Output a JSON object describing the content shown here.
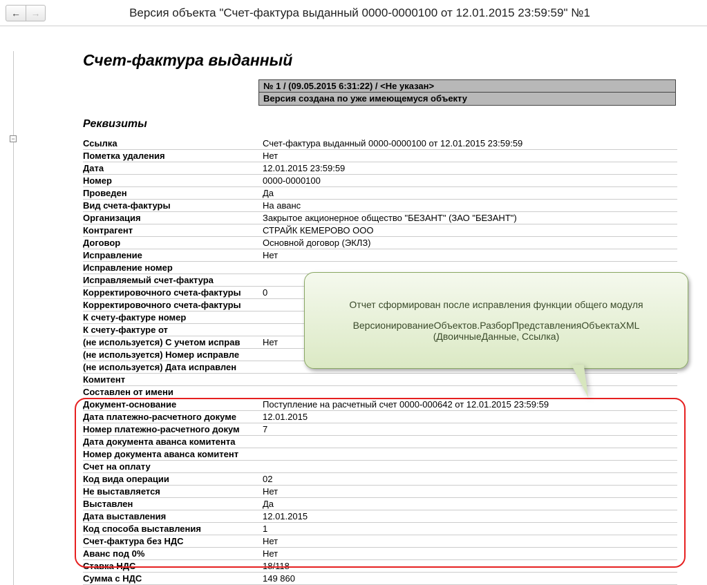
{
  "toolbar": {
    "title": "Версия объекта \"Счет-фактура выданный 0000-0000100 от 12.01.2015 23:59:59\" №1"
  },
  "doc": {
    "heading": "Счет-фактура выданный",
    "meta": {
      "row1": "№ 1 / (09.05.2015 6:31:22) / <Не указан>",
      "row2": "Версия создана по уже имеющемуся объекту"
    },
    "props_heading": "Реквизиты",
    "rows": [
      {
        "label": "Ссылка",
        "value": "Счет-фактура выданный 0000-0000100 от 12.01.2015 23:59:59"
      },
      {
        "label": "Пометка удаления",
        "value": "Нет"
      },
      {
        "label": "Дата",
        "value": "12.01.2015 23:59:59"
      },
      {
        "label": "Номер",
        "value": "0000-0000100"
      },
      {
        "label": "Проведен",
        "value": "Да"
      },
      {
        "label": "Вид счета-фактуры",
        "value": "На аванс"
      },
      {
        "label": "Организация",
        "value": "Закрытое акционерное общество \"БЕЗАНТ\" (ЗАО \"БЕЗАНТ\")"
      },
      {
        "label": "Контрагент",
        "value": "СТРАЙК КЕМЕРОВО ООО"
      },
      {
        "label": "Договор",
        "value": "Основной договор (ЭКЛЗ)"
      },
      {
        "label": "Исправление",
        "value": "Нет"
      },
      {
        "label": "Исправление номер",
        "value": ""
      },
      {
        "label": "Исправляемый счет-фактура",
        "value": ""
      },
      {
        "label": "Корректировочного счета-фактуры",
        "value": "0"
      },
      {
        "label": "Корректировочного счета-фактуры",
        "value": ""
      },
      {
        "label": "К счету-фактуре номер",
        "value": ""
      },
      {
        "label": "К счету-фактуре от",
        "value": ""
      },
      {
        "label": "(не используется) С учетом исправ",
        "value": "Нет"
      },
      {
        "label": "(не используется) Номер исправле",
        "value": ""
      },
      {
        "label": "(не используется) Дата исправлен",
        "value": ""
      },
      {
        "label": "Комитент",
        "value": ""
      },
      {
        "label": "Составлен от имени",
        "value": ""
      },
      {
        "label": "Документ-основание",
        "value": "Поступление на расчетный счет 0000-000642 от 12.01.2015 23:59:59"
      },
      {
        "label": "Дата платежно-расчетного докуме",
        "value": "12.01.2015"
      },
      {
        "label": "Номер платежно-расчетного докум",
        "value": "7"
      },
      {
        "label": "Дата документа аванса комитента",
        "value": ""
      },
      {
        "label": "Номер документа аванса комитент",
        "value": ""
      },
      {
        "label": "Счет на оплату",
        "value": ""
      },
      {
        "label": "Код вида операции",
        "value": "02"
      },
      {
        "label": "Не выставляется",
        "value": "Нет"
      },
      {
        "label": "Выставлен",
        "value": "Да"
      },
      {
        "label": "Дата выставления",
        "value": "12.01.2015"
      },
      {
        "label": "Код способа выставления",
        "value": "1"
      },
      {
        "label": "Счет-фактура без НДС",
        "value": "Нет"
      },
      {
        "label": "Аванс под 0%",
        "value": "Нет"
      },
      {
        "label": "Ставка НДС",
        "value": "18/118"
      },
      {
        "label": "Сумма с НДС",
        "value": "149 860"
      }
    ]
  },
  "callout": {
    "line1": "Отчет сформирован после исправления функции общего модуля",
    "line2": "ВерсионированиеОбъектов.РазборПредставленияОбъектаXML (ДвоичныеДанные, Ссылка)"
  },
  "style": {
    "highlight_border_color": "#e62020",
    "meta_bg": "#b8b8b8",
    "callout_bg_top": "#f5f9ee",
    "callout_bg_bottom": "#dbe9c4",
    "callout_border": "#8aa864"
  }
}
